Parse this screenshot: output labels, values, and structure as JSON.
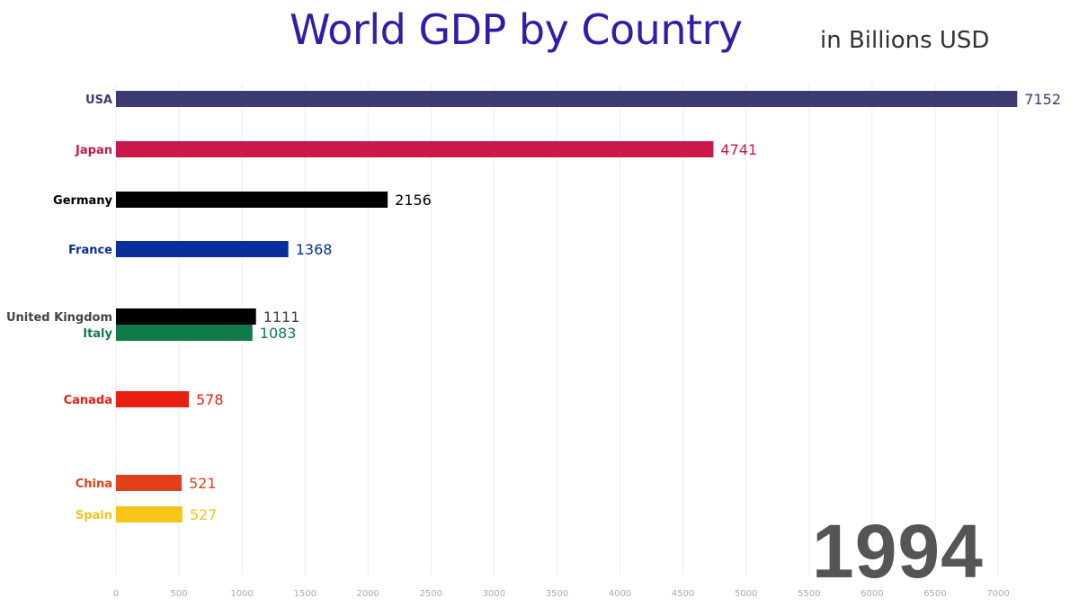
{
  "chart_data": {
    "type": "bar",
    "orientation": "horizontal",
    "title": "World GDP by Country",
    "subtitle": "in Billions USD",
    "year": "1994",
    "xlim": [
      0,
      7200
    ],
    "xticks": [
      0,
      500,
      1000,
      1500,
      2000,
      2500,
      3000,
      3500,
      4000,
      4500,
      5000,
      5500,
      6000,
      6500,
      7000
    ],
    "grid": true,
    "bars": [
      {
        "label": "USA",
        "value": 7152,
        "color": "#3d3b73"
      },
      {
        "label": "Japan",
        "value": 4741,
        "color": "#c8194a"
      },
      {
        "label": "Germany",
        "value": 2156,
        "color": "#000000"
      },
      {
        "label": "France",
        "value": 1368,
        "color": "#0a2f9a"
      },
      {
        "label": "United Kingdom",
        "value": 1111,
        "color": "#000000"
      },
      {
        "label": "Italy",
        "value": 1083,
        "color": "#117a4a"
      },
      {
        "label": "Canada",
        "value": 578,
        "color": "#e81e0f"
      },
      {
        "label": "China",
        "value": 521,
        "color": "#e2401a"
      },
      {
        "label": "Spain",
        "value": 527,
        "color": "#f5c518"
      }
    ]
  }
}
